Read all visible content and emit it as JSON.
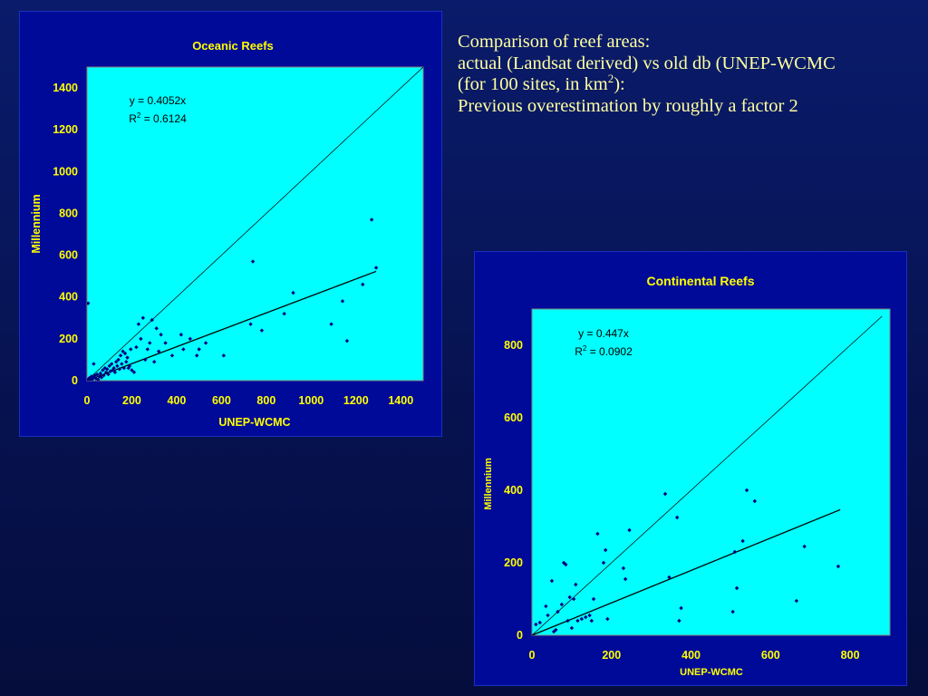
{
  "caption": {
    "line1": "Comparison of reef areas:",
    "line2": "actual (Landsat derived) vs old db (UNEP-WCMC",
    "line3_pre": "(for 100 sites, in km",
    "line3_sup": "2",
    "line3_post": "):",
    "line4": "Previous overestimation by roughly a factor 2"
  },
  "chart_data": [
    {
      "type": "scatter",
      "title": "Oceanic Reefs",
      "xlabel": "UNEP-WCMC",
      "ylabel": "Millennium",
      "xlim": [
        0,
        1500
      ],
      "ylim": [
        0,
        1500
      ],
      "xticks": [
        0,
        200,
        400,
        600,
        800,
        1000,
        1200,
        1400
      ],
      "yticks": [
        0,
        200,
        400,
        600,
        800,
        1000,
        1200,
        1400
      ],
      "grid": false,
      "plot_background": "#00ffff",
      "point_color": "#000080",
      "trendline": {
        "equation": "y = 0.4052x",
        "r2_label": "R",
        "r2_sup": "2",
        "r2_value": " = 0.6124",
        "slope": 0.4052,
        "x_range": [
          0,
          1290
        ]
      },
      "reference_line": {
        "slope": 1,
        "x_range": [
          0,
          1500
        ]
      },
      "points": [
        [
          5,
          5
        ],
        [
          10,
          12
        ],
        [
          15,
          3
        ],
        [
          20,
          20
        ],
        [
          25,
          8
        ],
        [
          30,
          15
        ],
        [
          35,
          25
        ],
        [
          40,
          10
        ],
        [
          45,
          30
        ],
        [
          50,
          5
        ],
        [
          55,
          20
        ],
        [
          60,
          35
        ],
        [
          65,
          15
        ],
        [
          70,
          50
        ],
        [
          75,
          25
        ],
        [
          80,
          60
        ],
        [
          85,
          40
        ],
        [
          90,
          55
        ],
        [
          95,
          30
        ],
        [
          100,
          70
        ],
        [
          105,
          45
        ],
        [
          110,
          80
        ],
        [
          115,
          50
        ],
        [
          120,
          60
        ],
        [
          125,
          40
        ],
        [
          130,
          90
        ],
        [
          135,
          70
        ],
        [
          140,
          100
        ],
        [
          145,
          55
        ],
        [
          150,
          120
        ],
        [
          155,
          80
        ],
        [
          160,
          140
        ],
        [
          165,
          60
        ],
        [
          170,
          130
        ],
        [
          175,
          90
        ],
        [
          180,
          110
        ],
        [
          185,
          60
        ],
        [
          190,
          70
        ],
        [
          195,
          150
        ],
        [
          200,
          50
        ],
        [
          210,
          40
        ],
        [
          220,
          160
        ],
        [
          230,
          270
        ],
        [
          240,
          200
        ],
        [
          250,
          300
        ],
        [
          260,
          100
        ],
        [
          270,
          150
        ],
        [
          280,
          180
        ],
        [
          290,
          290
        ],
        [
          300,
          90
        ],
        [
          310,
          250
        ],
        [
          320,
          140
        ],
        [
          330,
          220
        ],
        [
          350,
          180
        ],
        [
          380,
          120
        ],
        [
          420,
          220
        ],
        [
          430,
          150
        ],
        [
          460,
          200
        ],
        [
          490,
          120
        ],
        [
          500,
          150
        ],
        [
          530,
          180
        ],
        [
          610,
          120
        ],
        [
          730,
          270
        ],
        [
          740,
          570
        ],
        [
          780,
          240
        ],
        [
          880,
          320
        ],
        [
          920,
          420
        ],
        [
          1090,
          270
        ],
        [
          1140,
          380
        ],
        [
          1160,
          190
        ],
        [
          1230,
          460
        ],
        [
          1270,
          770
        ],
        [
          1290,
          540
        ],
        [
          5,
          370
        ],
        [
          30,
          80
        ]
      ]
    },
    {
      "type": "scatter",
      "title": "Continental Reefs",
      "xlabel": "UNEP-WCMC",
      "ylabel": "Millennium",
      "xlim": [
        0,
        900
      ],
      "ylim": [
        0,
        900
      ],
      "xticks": [
        0,
        200,
        400,
        600,
        800
      ],
      "yticks": [
        0,
        200,
        400,
        600,
        800
      ],
      "grid": false,
      "plot_background": "#00ffff",
      "point_color": "#000080",
      "trendline": {
        "equation": "y = 0.447x",
        "r2_label": "R",
        "r2_sup": "2",
        "r2_value": " = 0.0902",
        "slope": 0.447,
        "x_range": [
          0,
          775
        ]
      },
      "reference_line": {
        "slope": 1,
        "x_range": [
          0,
          880
        ]
      },
      "points": [
        [
          10,
          30
        ],
        [
          20,
          35
        ],
        [
          35,
          80
        ],
        [
          40,
          55
        ],
        [
          50,
          150
        ],
        [
          55,
          10
        ],
        [
          60,
          15
        ],
        [
          65,
          65
        ],
        [
          75,
          85
        ],
        [
          80,
          200
        ],
        [
          85,
          195
        ],
        [
          90,
          40
        ],
        [
          95,
          105
        ],
        [
          100,
          20
        ],
        [
          105,
          100
        ],
        [
          110,
          140
        ],
        [
          115,
          40
        ],
        [
          125,
          45
        ],
        [
          135,
          50
        ],
        [
          145,
          55
        ],
        [
          150,
          40
        ],
        [
          155,
          100
        ],
        [
          165,
          280
        ],
        [
          180,
          200
        ],
        [
          185,
          235
        ],
        [
          190,
          45
        ],
        [
          230,
          185
        ],
        [
          235,
          155
        ],
        [
          245,
          290
        ],
        [
          335,
          390
        ],
        [
          345,
          160
        ],
        [
          365,
          325
        ],
        [
          370,
          40
        ],
        [
          375,
          75
        ],
        [
          505,
          65
        ],
        [
          510,
          230
        ],
        [
          515,
          130
        ],
        [
          530,
          260
        ],
        [
          540,
          400
        ],
        [
          560,
          370
        ],
        [
          665,
          95
        ],
        [
          685,
          245
        ],
        [
          770,
          190
        ]
      ]
    }
  ]
}
